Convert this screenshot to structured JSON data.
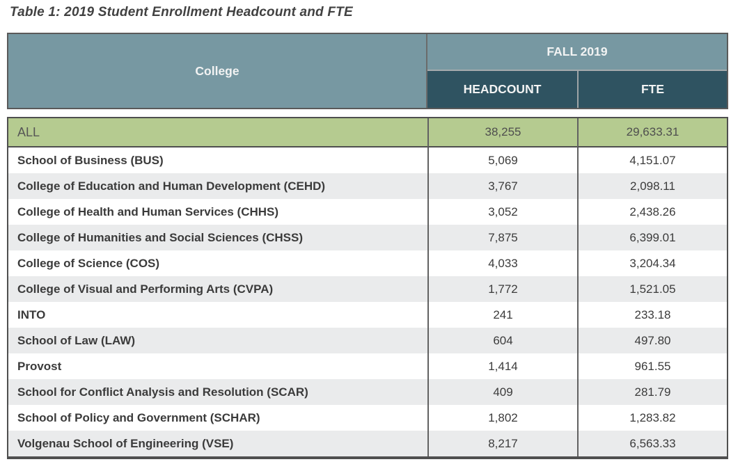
{
  "title": "Table 1: 2019 Student Enrollment Headcount and FTE",
  "colors": {
    "header_light_teal": "#7798A2",
    "header_dark_teal": "#2F5361",
    "total_row_green": "#B5CB90",
    "alt_row_gray": "#EAEBEC",
    "header_text": "#F2F3F3",
    "body_text": "#3B3B3B",
    "outer_border": "#4F4F4F"
  },
  "table": {
    "college_header": "College",
    "group_header": "FALL 2019",
    "columns": [
      "HEADCOUNT",
      "FTE"
    ],
    "total_row": {
      "college": "ALL",
      "headcount": "38,255",
      "fte": "29,633.31"
    },
    "rows": [
      {
        "college": "School of Business (BUS)",
        "headcount": "5,069",
        "fte": "4,151.07"
      },
      {
        "college": "College of Education and Human Development (CEHD)",
        "headcount": "3,767",
        "fte": "2,098.11"
      },
      {
        "college": "College of Health and Human Services (CHHS)",
        "headcount": "3,052",
        "fte": "2,438.26"
      },
      {
        "college": "College of Humanities and Social Sciences (CHSS)",
        "headcount": "7,875",
        "fte": "6,399.01"
      },
      {
        "college": "College of Science (COS)",
        "headcount": "4,033",
        "fte": "3,204.34"
      },
      {
        "college": "College of Visual and Performing Arts (CVPA)",
        "headcount": "1,772",
        "fte": "1,521.05"
      },
      {
        "college": "INTO",
        "headcount": "241",
        "fte": "233.18"
      },
      {
        "college": "School of Law (LAW)",
        "headcount": "604",
        "fte": "497.80"
      },
      {
        "college": "Provost",
        "headcount": "1,414",
        "fte": "961.55"
      },
      {
        "college": "School for Conflict Analysis and Resolution (SCAR)",
        "headcount": "409",
        "fte": "281.79"
      },
      {
        "college": "School of Policy and Government (SCHAR)",
        "headcount": "1,802",
        "fte": "1,283.82"
      },
      {
        "college": "Volgenau School of Engineering (VSE)",
        "headcount": "8,217",
        "fte": "6,563.33"
      }
    ]
  }
}
